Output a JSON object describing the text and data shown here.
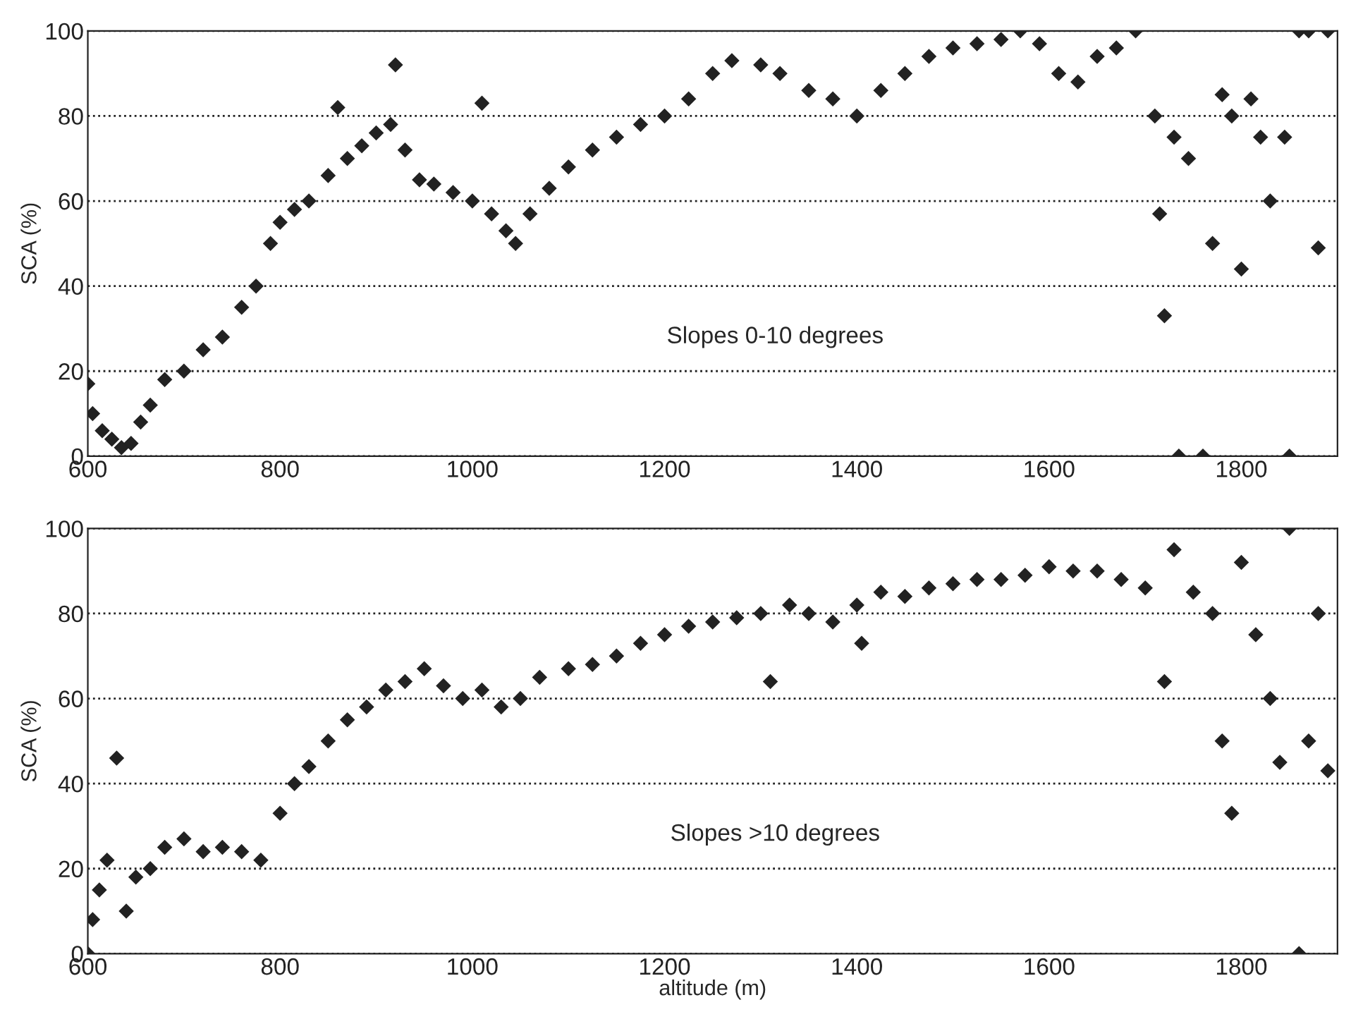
{
  "chart_data": [
    {
      "type": "scatter",
      "ylabel": "SCA (%)",
      "xlim": [
        600,
        1900
      ],
      "xticks": [
        600,
        800,
        1000,
        1200,
        1400,
        1600,
        1800
      ],
      "ylim": [
        0,
        100
      ],
      "yticks": [
        0,
        20,
        40,
        60,
        80,
        100
      ],
      "grid": "y",
      "marker": "diamond",
      "annotations": [
        "Slopes 0-10 degrees"
      ],
      "series": [
        {
          "color": "#222222",
          "x": [
            600,
            605,
            615,
            625,
            635,
            645,
            655,
            665,
            680,
            700,
            720,
            740,
            760,
            775,
            790,
            800,
            815,
            830,
            850,
            860,
            870,
            885,
            900,
            915,
            920,
            930,
            945,
            960,
            980,
            1000,
            1010,
            1020,
            1035,
            1045,
            1060,
            1080,
            1100,
            1125,
            1150,
            1175,
            1200,
            1225,
            1250,
            1270,
            1300,
            1320,
            1350,
            1375,
            1400,
            1425,
            1450,
            1475,
            1500,
            1525,
            1550,
            1570,
            1590,
            1610,
            1630,
            1650,
            1670,
            1690,
            1710,
            1715,
            1720,
            1730,
            1735,
            1745,
            1760,
            1770,
            1780,
            1790,
            1800,
            1810,
            1820,
            1830,
            1845,
            1850,
            1860,
            1870,
            1880,
            1890
          ],
          "values": [
            17,
            10,
            6,
            4,
            2,
            3,
            8,
            12,
            18,
            20,
            25,
            28,
            35,
            40,
            50,
            55,
            58,
            60,
            66,
            82,
            70,
            73,
            76,
            78,
            92,
            72,
            65,
            64,
            62,
            60,
            83,
            57,
            53,
            50,
            57,
            63,
            68,
            72,
            75,
            78,
            80,
            84,
            90,
            93,
            92,
            90,
            86,
            84,
            80,
            86,
            90,
            94,
            96,
            97,
            98,
            100,
            97,
            90,
            88,
            94,
            96,
            100,
            80,
            57,
            33,
            75,
            0,
            70,
            0,
            50,
            85,
            80,
            44,
            84,
            75,
            60,
            75,
            0,
            100,
            100,
            49,
            100
          ]
        }
      ]
    },
    {
      "type": "scatter",
      "xlabel": "altitude (m)",
      "ylabel": "SCA (%)",
      "xlim": [
        600,
        1900
      ],
      "xticks": [
        600,
        800,
        1000,
        1200,
        1400,
        1600,
        1800
      ],
      "ylim": [
        0,
        100
      ],
      "yticks": [
        0,
        20,
        40,
        60,
        80,
        100
      ],
      "grid": "y",
      "marker": "diamond",
      "annotations": [
        "Slopes >10 degrees"
      ],
      "series": [
        {
          "color": "#222222",
          "x": [
            600,
            605,
            612,
            620,
            630,
            640,
            650,
            665,
            680,
            700,
            720,
            740,
            760,
            780,
            800,
            815,
            830,
            850,
            870,
            890,
            910,
            930,
            950,
            970,
            990,
            1010,
            1030,
            1050,
            1070,
            1100,
            1125,
            1150,
            1175,
            1200,
            1225,
            1250,
            1275,
            1300,
            1310,
            1330,
            1350,
            1375,
            1400,
            1405,
            1425,
            1450,
            1475,
            1500,
            1525,
            1550,
            1575,
            1600,
            1625,
            1650,
            1675,
            1700,
            1720,
            1730,
            1750,
            1770,
            1780,
            1790,
            1800,
            1815,
            1830,
            1840,
            1850,
            1860,
            1870,
            1880,
            1890
          ],
          "values": [
            0,
            8,
            15,
            22,
            46,
            10,
            18,
            20,
            25,
            27,
            24,
            25,
            24,
            22,
            33,
            40,
            44,
            50,
            55,
            58,
            62,
            64,
            67,
            63,
            60,
            62,
            58,
            60,
            65,
            67,
            68,
            70,
            73,
            75,
            77,
            78,
            79,
            80,
            64,
            82,
            80,
            78,
            82,
            73,
            85,
            84,
            86,
            87,
            88,
            88,
            89,
            91,
            90,
            90,
            88,
            86,
            64,
            95,
            85,
            80,
            50,
            33,
            92,
            75,
            60,
            45,
            100,
            0,
            50,
            80,
            43
          ]
        }
      ]
    }
  ]
}
